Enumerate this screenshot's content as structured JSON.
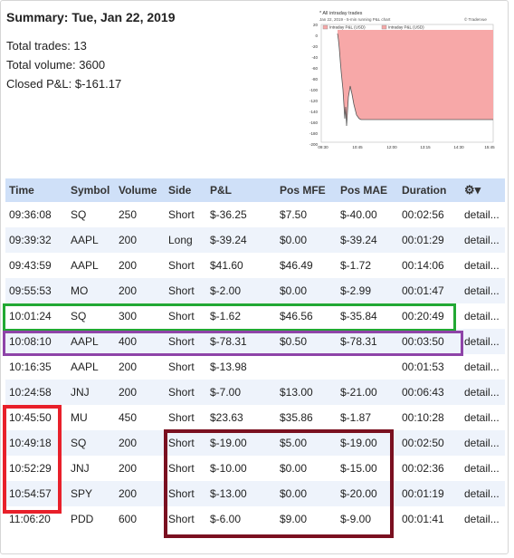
{
  "summary": {
    "title": "Summary: Tue, Jan 22, 2019",
    "total_trades": "Total trades: 13",
    "total_volume": "Total volume: 3600",
    "closed_pl": "Closed P&L: $-161.17"
  },
  "mini_chart": {
    "title": "* All intraday trades",
    "subtitle": "Jan 22, 2019 - 5-min running P&L chart",
    "brand": "© Tradervue",
    "legend_a": "Intraday P&L (USD)",
    "legend_b": "Intraday P&L (USD)",
    "y_ticks": [
      "20",
      "0",
      "-20",
      "-40",
      "-60",
      "-80",
      "-100",
      "-120",
      "-140",
      "-160",
      "-180",
      "-200"
    ],
    "x_ticks": [
      "09:30",
      "10:45",
      "12:00",
      "13:15",
      "14:30",
      "15:45"
    ],
    "fill_color": "#f7a8a8",
    "line_color": "#555555"
  },
  "table": {
    "columns": [
      "Time",
      "Symbol",
      "Volume",
      "Side",
      "P&L",
      "Pos MFE",
      "Pos MAE",
      "Duration"
    ],
    "rows": [
      {
        "time": "09:36:08",
        "symbol": "SQ",
        "volume": "250",
        "side": "Short",
        "pl": "$-36.25",
        "mfe": "$7.50",
        "mae": "$-40.00",
        "duration": "00:02:56",
        "link": "detail..."
      },
      {
        "time": "09:39:32",
        "symbol": "AAPL",
        "volume": "200",
        "side": "Long",
        "pl": "$-39.24",
        "mfe": "$0.00",
        "mae": "$-39.24",
        "duration": "00:01:29",
        "link": "detail..."
      },
      {
        "time": "09:43:59",
        "symbol": "AAPL",
        "volume": "200",
        "side": "Short",
        "pl": "$41.60",
        "mfe": "$46.49",
        "mae": "$-1.72",
        "duration": "00:14:06",
        "link": "detail..."
      },
      {
        "time": "09:55:53",
        "symbol": "MO",
        "volume": "200",
        "side": "Short",
        "pl": "$-2.00",
        "mfe": "$0.00",
        "mae": "$-2.99",
        "duration": "00:01:47",
        "link": "detail..."
      },
      {
        "time": "10:01:24",
        "symbol": "SQ",
        "volume": "300",
        "side": "Short",
        "pl": "$-1.62",
        "mfe": "$46.56",
        "mae": "$-35.84",
        "duration": "00:20:49",
        "link": "detail..."
      },
      {
        "time": "10:08:10",
        "symbol": "AAPL",
        "volume": "400",
        "side": "Short",
        "pl": "$-78.31",
        "mfe": "$0.50",
        "mae": "$-78.31",
        "duration": "00:03:50",
        "link": "detail..."
      },
      {
        "time": "10:16:35",
        "symbol": "AAPL",
        "volume": "200",
        "side": "Short",
        "pl": "$-13.98",
        "mfe": "",
        "mae": "",
        "duration": "00:01:53",
        "link": "detail..."
      },
      {
        "time": "10:24:58",
        "symbol": "JNJ",
        "volume": "200",
        "side": "Short",
        "pl": "$-7.00",
        "mfe": "$13.00",
        "mae": "$-21.00",
        "duration": "00:06:43",
        "link": "detail..."
      },
      {
        "time": "10:45:50",
        "symbol": "MU",
        "volume": "450",
        "side": "Short",
        "pl": "$23.63",
        "mfe": "$35.86",
        "mae": "$-1.87",
        "duration": "00:10:28",
        "link": "detail..."
      },
      {
        "time": "10:49:18",
        "symbol": "SQ",
        "volume": "200",
        "side": "Short",
        "pl": "$-19.00",
        "mfe": "$5.00",
        "mae": "$-19.00",
        "duration": "00:02:50",
        "link": "detail..."
      },
      {
        "time": "10:52:29",
        "symbol": "JNJ",
        "volume": "200",
        "side": "Short",
        "pl": "$-10.00",
        "mfe": "$0.00",
        "mae": "$-15.00",
        "duration": "00:02:36",
        "link": "detail..."
      },
      {
        "time": "10:54:57",
        "symbol": "SPY",
        "volume": "200",
        "side": "Short",
        "pl": "$-13.00",
        "mfe": "$0.00",
        "mae": "$-20.00",
        "duration": "00:01:19",
        "link": "detail..."
      },
      {
        "time": "11:06:20",
        "symbol": "PDD",
        "volume": "600",
        "side": "Short",
        "pl": "$-6.00",
        "mfe": "$9.00",
        "mae": "$-9.00",
        "duration": "00:01:41",
        "link": "detail..."
      }
    ]
  },
  "highlights": {
    "green": "#22a833",
    "purple": "#8e44a8",
    "red": "#e8202a",
    "maroon": "#7a1020"
  }
}
